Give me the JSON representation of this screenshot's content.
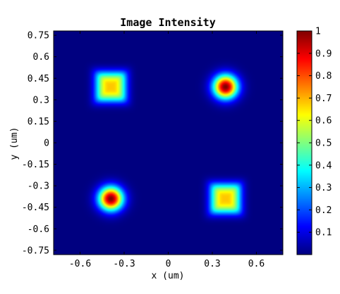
{
  "chart_data": {
    "type": "heatmap",
    "title": "Image Intensity",
    "xlabel": "x (um)",
    "ylabel": "y (um)",
    "xlim": [
      -0.78,
      0.78
    ],
    "ylim": [
      -0.78,
      0.78
    ],
    "x_ticks": [
      "-0.6",
      "-0.3",
      "0",
      "0.3",
      "0.6"
    ],
    "x_tick_values": [
      -0.6,
      -0.3,
      0,
      0.3,
      0.6
    ],
    "y_ticks": [
      "0.75",
      "0.6",
      "0.45",
      "0.3",
      "0.15",
      "0",
      "-0.15",
      "-0.3",
      "-0.45",
      "-0.6",
      "-0.75"
    ],
    "y_tick_values": [
      0.75,
      0.6,
      0.45,
      0.3,
      0.15,
      0,
      -0.15,
      -0.3,
      -0.45,
      -0.6,
      -0.75
    ],
    "colorbar": {
      "range": [
        0,
        1
      ],
      "ticks": [
        "0.1",
        "0.2",
        "0.3",
        "0.4",
        "0.5",
        "0.6",
        "0.7",
        "0.8",
        "0.9",
        "1"
      ],
      "tick_values": [
        0.1,
        0.2,
        0.3,
        0.4,
        0.5,
        0.6,
        0.7,
        0.8,
        0.9,
        1.0
      ],
      "colormap": "jet"
    },
    "features": [
      {
        "shape": "square",
        "x": -0.39,
        "y": 0.39,
        "peak": 0.68
      },
      {
        "shape": "circle",
        "x": 0.39,
        "y": 0.39,
        "peak": 1.0
      },
      {
        "shape": "circle",
        "x": -0.39,
        "y": -0.39,
        "peak": 1.0
      },
      {
        "shape": "square",
        "x": 0.39,
        "y": -0.39,
        "peak": 0.68
      }
    ]
  }
}
